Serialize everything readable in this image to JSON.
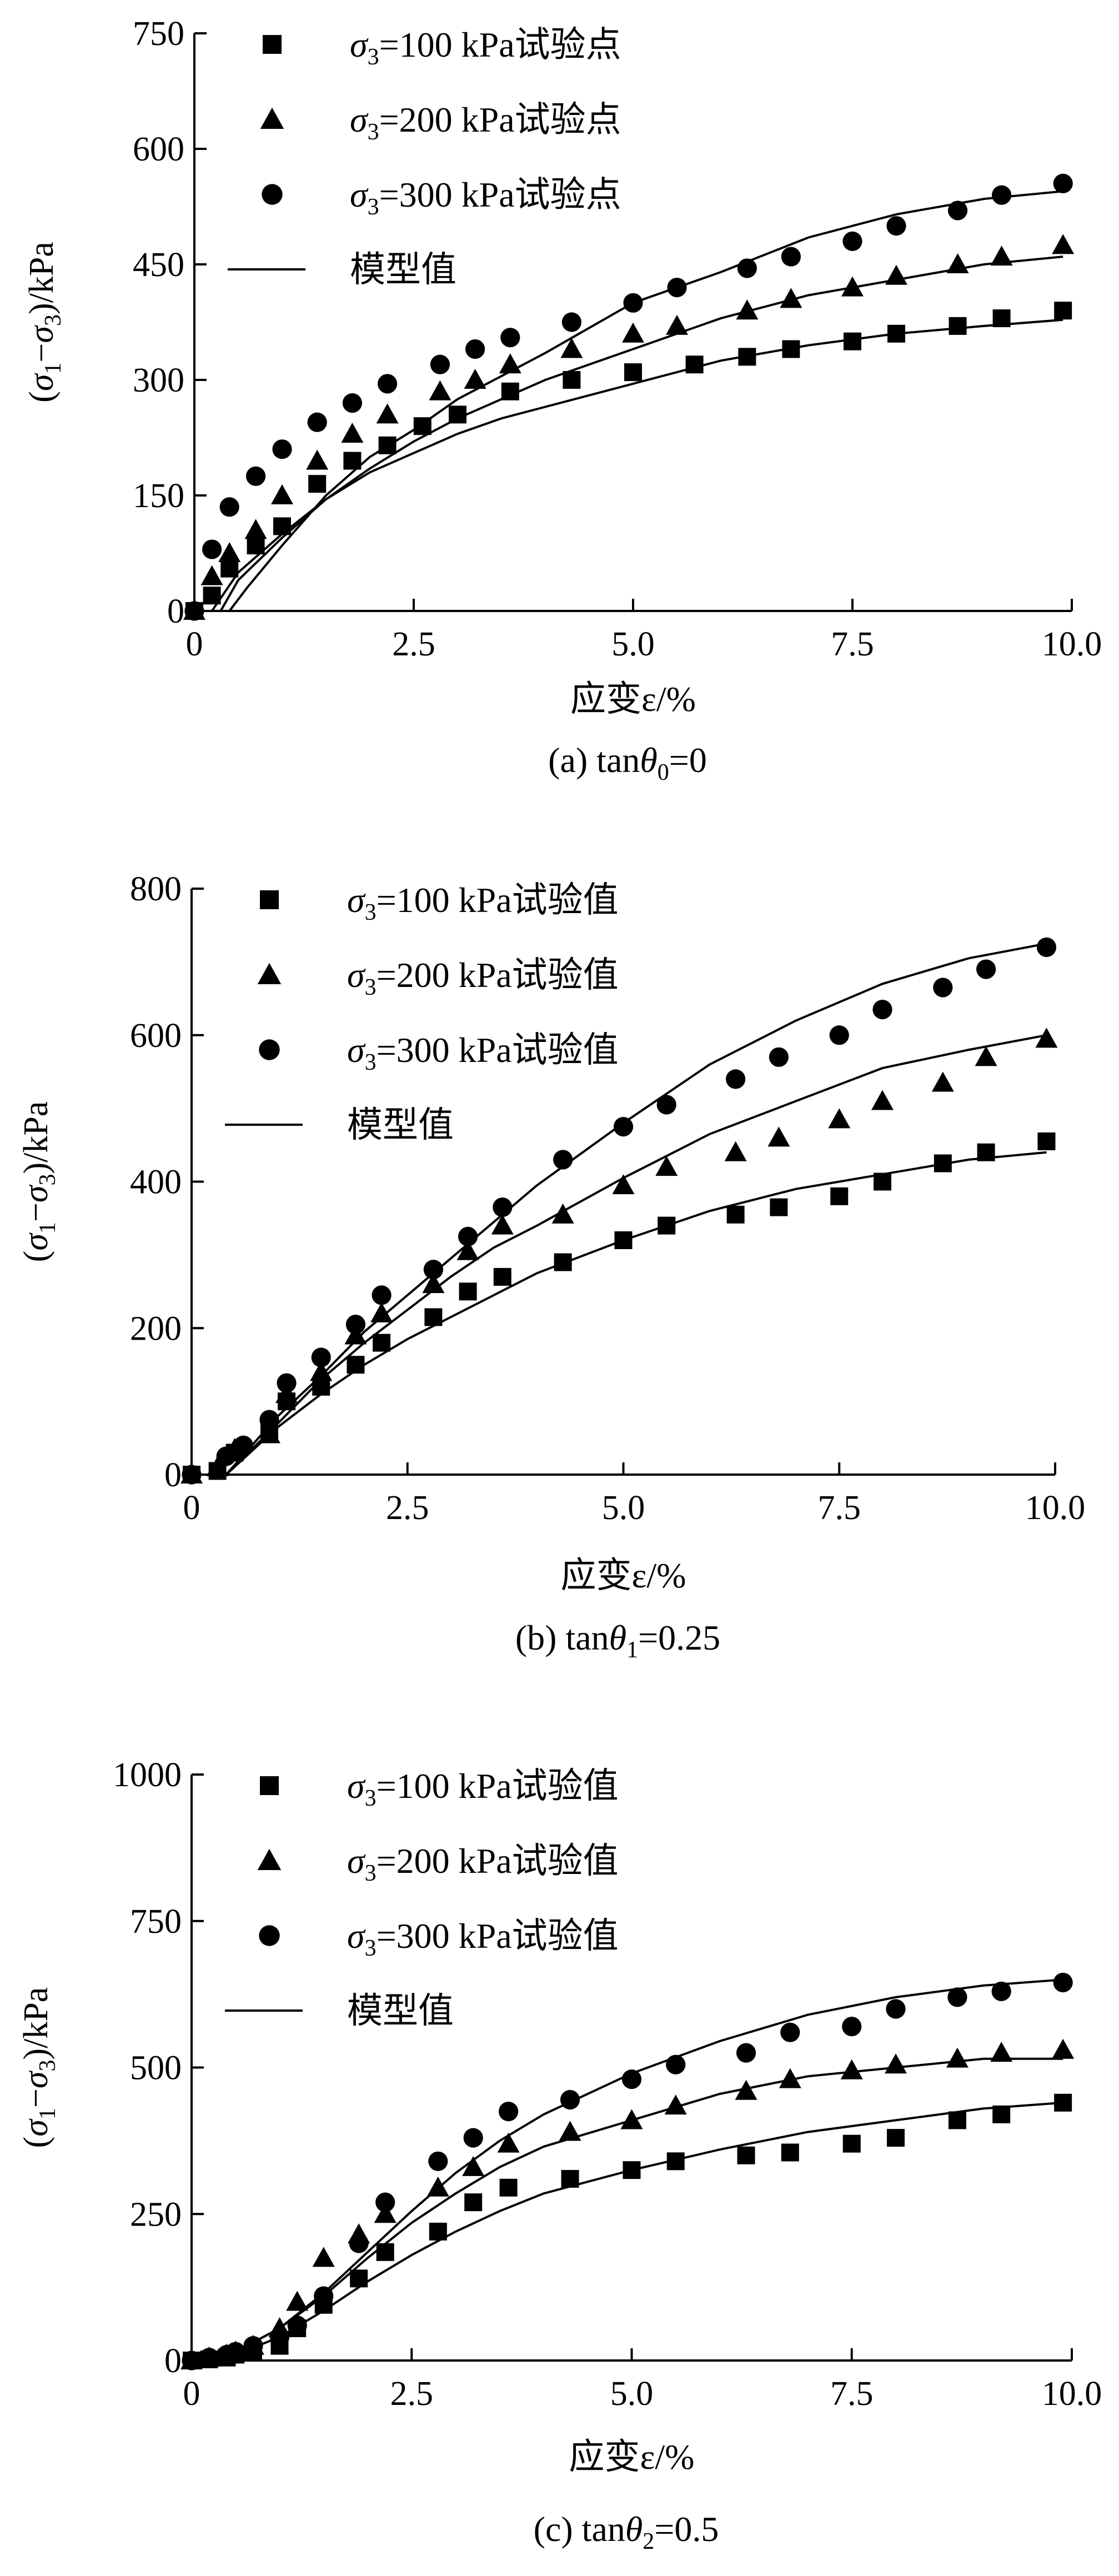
{
  "colors": {
    "ink": "#000000",
    "model_line": "#000000",
    "background": "#ffffff"
  },
  "chart_data": [
    {
      "type": "scatter",
      "caption": "(a) tanθ0=0",
      "caption_parts": {
        "prefix": "(a) tan",
        "theta": "θ",
        "sub": "0",
        "suffix": "=0"
      },
      "xlabel": "应变ε/%",
      "ylabel": "(σ1−σ3)/kPa",
      "xlim": [
        0,
        10
      ],
      "ylim": [
        0,
        750
      ],
      "xticks": [
        0,
        2.5,
        5.0,
        7.5,
        10.0
      ],
      "xtick_labels": [
        "0",
        "2.5",
        "5.0",
        "7.5",
        "10.0"
      ],
      "yticks": [
        0,
        150,
        300,
        450,
        600,
        750
      ],
      "ytick_labels": [
        "0",
        "150",
        "300",
        "450",
        "600",
        "750"
      ],
      "legend_position": "top-left",
      "legend": [
        {
          "marker": "square",
          "label": "σ3=100 kPa试验点",
          "text": "=100 kPa试验点"
        },
        {
          "marker": "triangle",
          "label": "σ3=200 kPa试验点",
          "text": "=200 kPa试验点"
        },
        {
          "marker": "circle",
          "label": "σ3=300 kPa试验点",
          "text": "=300 kPa试验点"
        },
        {
          "marker": "line",
          "label": "模型值",
          "text": "模型值"
        }
      ],
      "series": [
        {
          "name": "σ3=100 kPa试验点",
          "marker": "square",
          "x": [
            0.0,
            0.2,
            0.4,
            0.7,
            1.0,
            1.4,
            1.8,
            2.2,
            2.6,
            3.0,
            3.6,
            4.3,
            5.0,
            5.7,
            6.3,
            6.8,
            7.5,
            8.0,
            8.7,
            9.2,
            9.9
          ],
          "y": [
            0,
            20,
            55,
            85,
            110,
            165,
            195,
            215,
            240,
            255,
            285,
            300,
            310,
            320,
            330,
            340,
            350,
            360,
            370,
            380,
            390
          ]
        },
        {
          "name": "σ3=200 kPa试验点",
          "marker": "triangle",
          "x": [
            0.0,
            0.2,
            0.4,
            0.7,
            1.0,
            1.4,
            1.8,
            2.2,
            2.8,
            3.2,
            3.6,
            4.3,
            5.0,
            5.5,
            6.3,
            6.8,
            7.5,
            8.0,
            8.7,
            9.2,
            9.9
          ],
          "y": [
            0,
            45,
            75,
            105,
            150,
            195,
            230,
            255,
            285,
            300,
            320,
            340,
            360,
            370,
            390,
            405,
            420,
            435,
            450,
            460,
            475
          ]
        },
        {
          "name": "σ3=300 kPa试验点",
          "marker": "circle",
          "x": [
            0.0,
            0.2,
            0.4,
            0.7,
            1.0,
            1.4,
            1.8,
            2.2,
            2.8,
            3.2,
            3.6,
            4.3,
            5.0,
            5.5,
            6.3,
            6.8,
            7.5,
            8.0,
            8.7,
            9.2,
            9.9
          ],
          "y": [
            0,
            80,
            135,
            175,
            210,
            245,
            270,
            295,
            320,
            340,
            355,
            375,
            400,
            420,
            445,
            460,
            480,
            500,
            520,
            540,
            555
          ]
        }
      ],
      "model_curves": [
        {
          "x": [
            0.2,
            0.5,
            1.0,
            1.5,
            2.0,
            2.5,
            3.0,
            3.5,
            4.0,
            5.0,
            6.0,
            7.0,
            8.0,
            9.0,
            9.9
          ],
          "y": [
            0,
            50,
            100,
            145,
            180,
            205,
            230,
            250,
            265,
            295,
            325,
            345,
            360,
            370,
            378
          ]
        },
        {
          "x": [
            0.3,
            0.5,
            1.0,
            1.5,
            2.0,
            2.5,
            3.0,
            3.5,
            4.0,
            5.0,
            6.0,
            7.0,
            8.0,
            9.0,
            9.9
          ],
          "y": [
            0,
            40,
            95,
            145,
            185,
            220,
            250,
            275,
            300,
            340,
            380,
            410,
            430,
            450,
            460
          ]
        },
        {
          "x": [
            0.4,
            0.6,
            1.0,
            1.5,
            2.0,
            2.5,
            3.0,
            3.5,
            4.0,
            5.0,
            6.0,
            7.0,
            8.0,
            9.0,
            9.9
          ],
          "y": [
            0,
            30,
            85,
            150,
            200,
            235,
            275,
            305,
            335,
            400,
            440,
            485,
            515,
            535,
            545
          ]
        }
      ]
    },
    {
      "type": "scatter",
      "caption": "(b) tanθ1=0.25",
      "caption_parts": {
        "prefix": "(b) tan",
        "theta": "θ",
        "sub": "1",
        "suffix": "=0.25"
      },
      "xlabel": "应变ε/%",
      "ylabel": "(σ1−σ3)/kPa",
      "xlim": [
        0,
        10
      ],
      "ylim": [
        0,
        800
      ],
      "xticks": [
        0,
        2.5,
        5.0,
        7.5,
        10.0
      ],
      "xtick_labels": [
        "0",
        "2.5",
        "5.0",
        "7.5",
        "10.0"
      ],
      "yticks": [
        0,
        200,
        400,
        600,
        800
      ],
      "ytick_labels": [
        "0",
        "200",
        "400",
        "600",
        "800"
      ],
      "legend_position": "top-left",
      "legend": [
        {
          "marker": "square",
          "label": "σ3=100 kPa试验值",
          "text": "=100 kPa试验值"
        },
        {
          "marker": "triangle",
          "label": "σ3=200 kPa试验值",
          "text": "=200 kPa试验值"
        },
        {
          "marker": "circle",
          "label": "σ3=300 kPa试验值",
          "text": "=300 kPa试验值"
        },
        {
          "marker": "line",
          "label": "模型值",
          "text": "模型值"
        }
      ],
      "series": [
        {
          "name": "σ3=100 kPa试验值",
          "marker": "square",
          "x": [
            0.0,
            0.3,
            0.5,
            0.9,
            1.1,
            1.5,
            1.9,
            2.2,
            2.8,
            3.2,
            3.6,
            4.3,
            5.0,
            5.5,
            6.3,
            6.8,
            7.5,
            8.0,
            8.7,
            9.2,
            9.9
          ],
          "y": [
            0,
            5,
            30,
            60,
            100,
            120,
            150,
            180,
            215,
            250,
            270,
            290,
            320,
            340,
            355,
            365,
            380,
            400,
            425,
            440,
            455
          ]
        },
        {
          "name": "σ3=200 kPa试验值",
          "marker": "triangle",
          "x": [
            0.0,
            0.3,
            0.5,
            0.9,
            1.1,
            1.5,
            1.9,
            2.2,
            2.8,
            3.2,
            3.6,
            4.3,
            5.0,
            5.5,
            6.3,
            6.8,
            7.5,
            8.0,
            8.7,
            9.2,
            9.9
          ],
          "y": [
            0,
            10,
            35,
            55,
            110,
            140,
            190,
            220,
            260,
            305,
            340,
            355,
            395,
            420,
            440,
            460,
            485,
            510,
            535,
            570,
            595
          ]
        },
        {
          "name": "σ3=300 kPa试验值",
          "marker": "circle",
          "x": [
            0.0,
            0.4,
            0.6,
            0.9,
            1.1,
            1.5,
            1.9,
            2.2,
            2.8,
            3.2,
            3.6,
            4.3,
            5.0,
            5.5,
            6.3,
            6.8,
            7.5,
            8.0,
            8.7,
            9.2,
            9.9
          ],
          "y": [
            0,
            25,
            40,
            75,
            125,
            160,
            205,
            245,
            280,
            325,
            365,
            430,
            475,
            505,
            540,
            570,
            600,
            635,
            665,
            690,
            720
          ]
        }
      ],
      "model_curves": [
        {
          "x": [
            0.4,
            1.0,
            1.5,
            2.0,
            2.5,
            3.0,
            3.5,
            4.0,
            5.0,
            6.0,
            7.0,
            8.0,
            9.0,
            9.9
          ],
          "y": [
            0,
            65,
            110,
            150,
            185,
            215,
            245,
            275,
            320,
            360,
            390,
            410,
            430,
            440
          ]
        },
        {
          "x": [
            0.4,
            1.0,
            1.5,
            2.0,
            2.5,
            3.0,
            3.5,
            4.0,
            5.0,
            6.0,
            7.0,
            8.0,
            9.0,
            9.9
          ],
          "y": [
            0,
            70,
            130,
            180,
            225,
            270,
            310,
            340,
            405,
            465,
            510,
            555,
            580,
            600
          ]
        },
        {
          "x": [
            0.4,
            1.0,
            1.5,
            2.0,
            2.5,
            3.0,
            3.5,
            4.0,
            5.0,
            6.0,
            7.0,
            8.0,
            9.0,
            9.9
          ],
          "y": [
            0,
            80,
            135,
            195,
            245,
            295,
            345,
            395,
            480,
            560,
            620,
            670,
            705,
            725
          ]
        }
      ]
    },
    {
      "type": "scatter",
      "caption": "(c) tanθ2=0.5",
      "caption_parts": {
        "prefix": "(c) tan",
        "theta": "θ",
        "sub": "2",
        "suffix": "=0.5"
      },
      "xlabel": "应变ε/%",
      "ylabel": "(σ1−σ3)/kPa",
      "xlim": [
        0,
        10
      ],
      "ylim": [
        0,
        1000
      ],
      "xticks": [
        0,
        2.5,
        5.0,
        7.5,
        10.0
      ],
      "xtick_labels": [
        "0",
        "2.5",
        "5.0",
        "7.5",
        "10.0"
      ],
      "yticks": [
        0,
        250,
        500,
        750,
        1000
      ],
      "ytick_labels": [
        "0",
        "250",
        "500",
        "750",
        "1000"
      ],
      "legend_position": "top-left",
      "legend": [
        {
          "marker": "square",
          "label": "σ3=100 kPa试验值",
          "text": "=100 kPa试验值"
        },
        {
          "marker": "triangle",
          "label": "σ3=200 kPa试验值",
          "text": "=200 kPa试验值"
        },
        {
          "marker": "circle",
          "label": "σ3=300 kPa试验值",
          "text": "=300 kPa试验值"
        },
        {
          "marker": "line",
          "label": "模型值",
          "text": "模型值"
        }
      ],
      "series": [
        {
          "name": "σ3=100 kPa试验值",
          "marker": "square",
          "x": [
            0.0,
            0.2,
            0.4,
            0.5,
            0.7,
            1.0,
            1.2,
            1.5,
            1.9,
            2.2,
            2.8,
            3.2,
            3.6,
            4.3,
            5.0,
            5.5,
            6.3,
            6.8,
            7.5,
            8.0,
            8.7,
            9.2,
            9.9
          ],
          "y": [
            0,
            2,
            5,
            10,
            15,
            25,
            55,
            95,
            140,
            185,
            220,
            270,
            295,
            310,
            325,
            340,
            350,
            355,
            370,
            380,
            410,
            420,
            440
          ]
        },
        {
          "name": "σ3=200 kPa试验值",
          "marker": "triangle",
          "x": [
            0.0,
            0.2,
            0.4,
            0.5,
            0.7,
            1.0,
            1.2,
            1.5,
            1.9,
            2.2,
            2.8,
            3.2,
            3.6,
            4.3,
            5.0,
            5.5,
            6.3,
            6.8,
            7.5,
            8.0,
            8.7,
            9.2,
            9.9
          ],
          "y": [
            0,
            5,
            10,
            15,
            25,
            55,
            100,
            175,
            215,
            250,
            295,
            330,
            370,
            390,
            410,
            435,
            460,
            480,
            495,
            505,
            515,
            525,
            530
          ]
        },
        {
          "name": "σ3=300 kPa试验值",
          "marker": "circle",
          "x": [
            0.0,
            0.2,
            0.4,
            0.5,
            0.7,
            1.0,
            1.2,
            1.5,
            1.9,
            2.2,
            2.8,
            3.2,
            3.6,
            4.3,
            5.0,
            5.5,
            6.3,
            6.8,
            7.5,
            8.0,
            8.7,
            9.2,
            9.9
          ],
          "y": [
            0,
            5,
            10,
            15,
            25,
            40,
            60,
            110,
            200,
            270,
            340,
            380,
            425,
            445,
            480,
            505,
            525,
            560,
            570,
            600,
            620,
            630,
            645
          ]
        }
      ],
      "model_curves": [
        {
          "x": [
            0.0,
            0.5,
            1.0,
            1.5,
            2.0,
            2.5,
            3.0,
            3.5,
            4.0,
            5.0,
            6.0,
            7.0,
            8.0,
            9.0,
            9.9
          ],
          "y": [
            0,
            10,
            40,
            85,
            135,
            180,
            220,
            255,
            285,
            325,
            360,
            390,
            410,
            430,
            440
          ]
        },
        {
          "x": [
            0.0,
            0.5,
            1.0,
            1.5,
            2.0,
            2.5,
            3.0,
            3.5,
            4.0,
            5.0,
            6.0,
            7.0,
            8.0,
            9.0,
            9.9
          ],
          "y": [
            0,
            15,
            55,
            110,
            175,
            235,
            285,
            330,
            365,
            410,
            455,
            485,
            500,
            515,
            515
          ]
        },
        {
          "x": [
            0.0,
            0.5,
            1.0,
            1.5,
            2.0,
            2.5,
            3.0,
            3.5,
            4.0,
            5.0,
            6.0,
            7.0,
            8.0,
            9.0,
            9.9
          ],
          "y": [
            0,
            15,
            55,
            115,
            185,
            255,
            320,
            375,
            420,
            490,
            545,
            590,
            620,
            640,
            650
          ]
        }
      ]
    }
  ]
}
